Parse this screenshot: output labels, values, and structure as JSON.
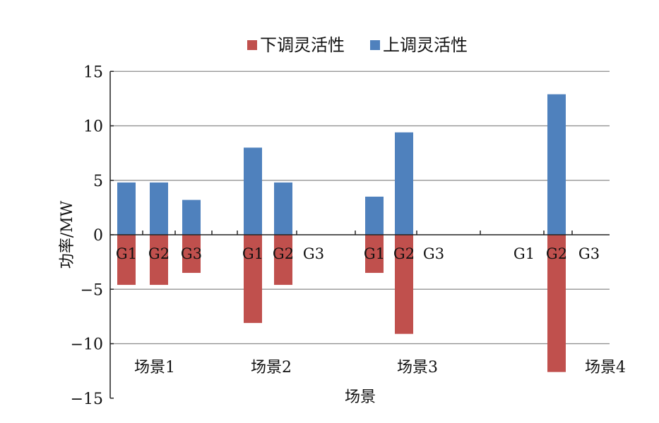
{
  "chart_data": {
    "type": "bar",
    "xlabel": "场景",
    "ylabel": "功率/MW",
    "ylim": [
      -15,
      15
    ],
    "yticks": [
      15,
      10,
      5,
      0,
      -5,
      -10,
      -15
    ],
    "ytick_labels": [
      "15",
      "10",
      "5",
      "0",
      "−5",
      "−10",
      "−15"
    ],
    "grid": true,
    "legend": "top",
    "groups": [
      {
        "label": "场景1",
        "categories": [
          "G1",
          "G2",
          "G3"
        ]
      },
      {
        "label": "场景2",
        "categories": [
          "G1",
          "G2",
          "G3"
        ]
      },
      {
        "label": "场景3",
        "categories": [
          "G1",
          "G2",
          "G3"
        ]
      },
      {
        "label": "场景4",
        "categories": [
          "G1",
          "G2",
          "G3"
        ]
      }
    ],
    "series": [
      {
        "name": "下调灵活性",
        "color": "#c0504d",
        "values": [
          [
            -4.6,
            -4.6,
            -3.5
          ],
          [
            -8.1,
            -4.6,
            0
          ],
          [
            -3.5,
            -9.1,
            0
          ],
          [
            0,
            -12.6,
            0
          ]
        ]
      },
      {
        "name": "上调灵活性",
        "color": "#4f81bd",
        "values": [
          [
            4.8,
            4.8,
            3.2
          ],
          [
            8.0,
            4.8,
            0
          ],
          [
            3.5,
            9.4,
            0
          ],
          [
            0,
            12.9,
            0
          ]
        ]
      }
    ]
  }
}
